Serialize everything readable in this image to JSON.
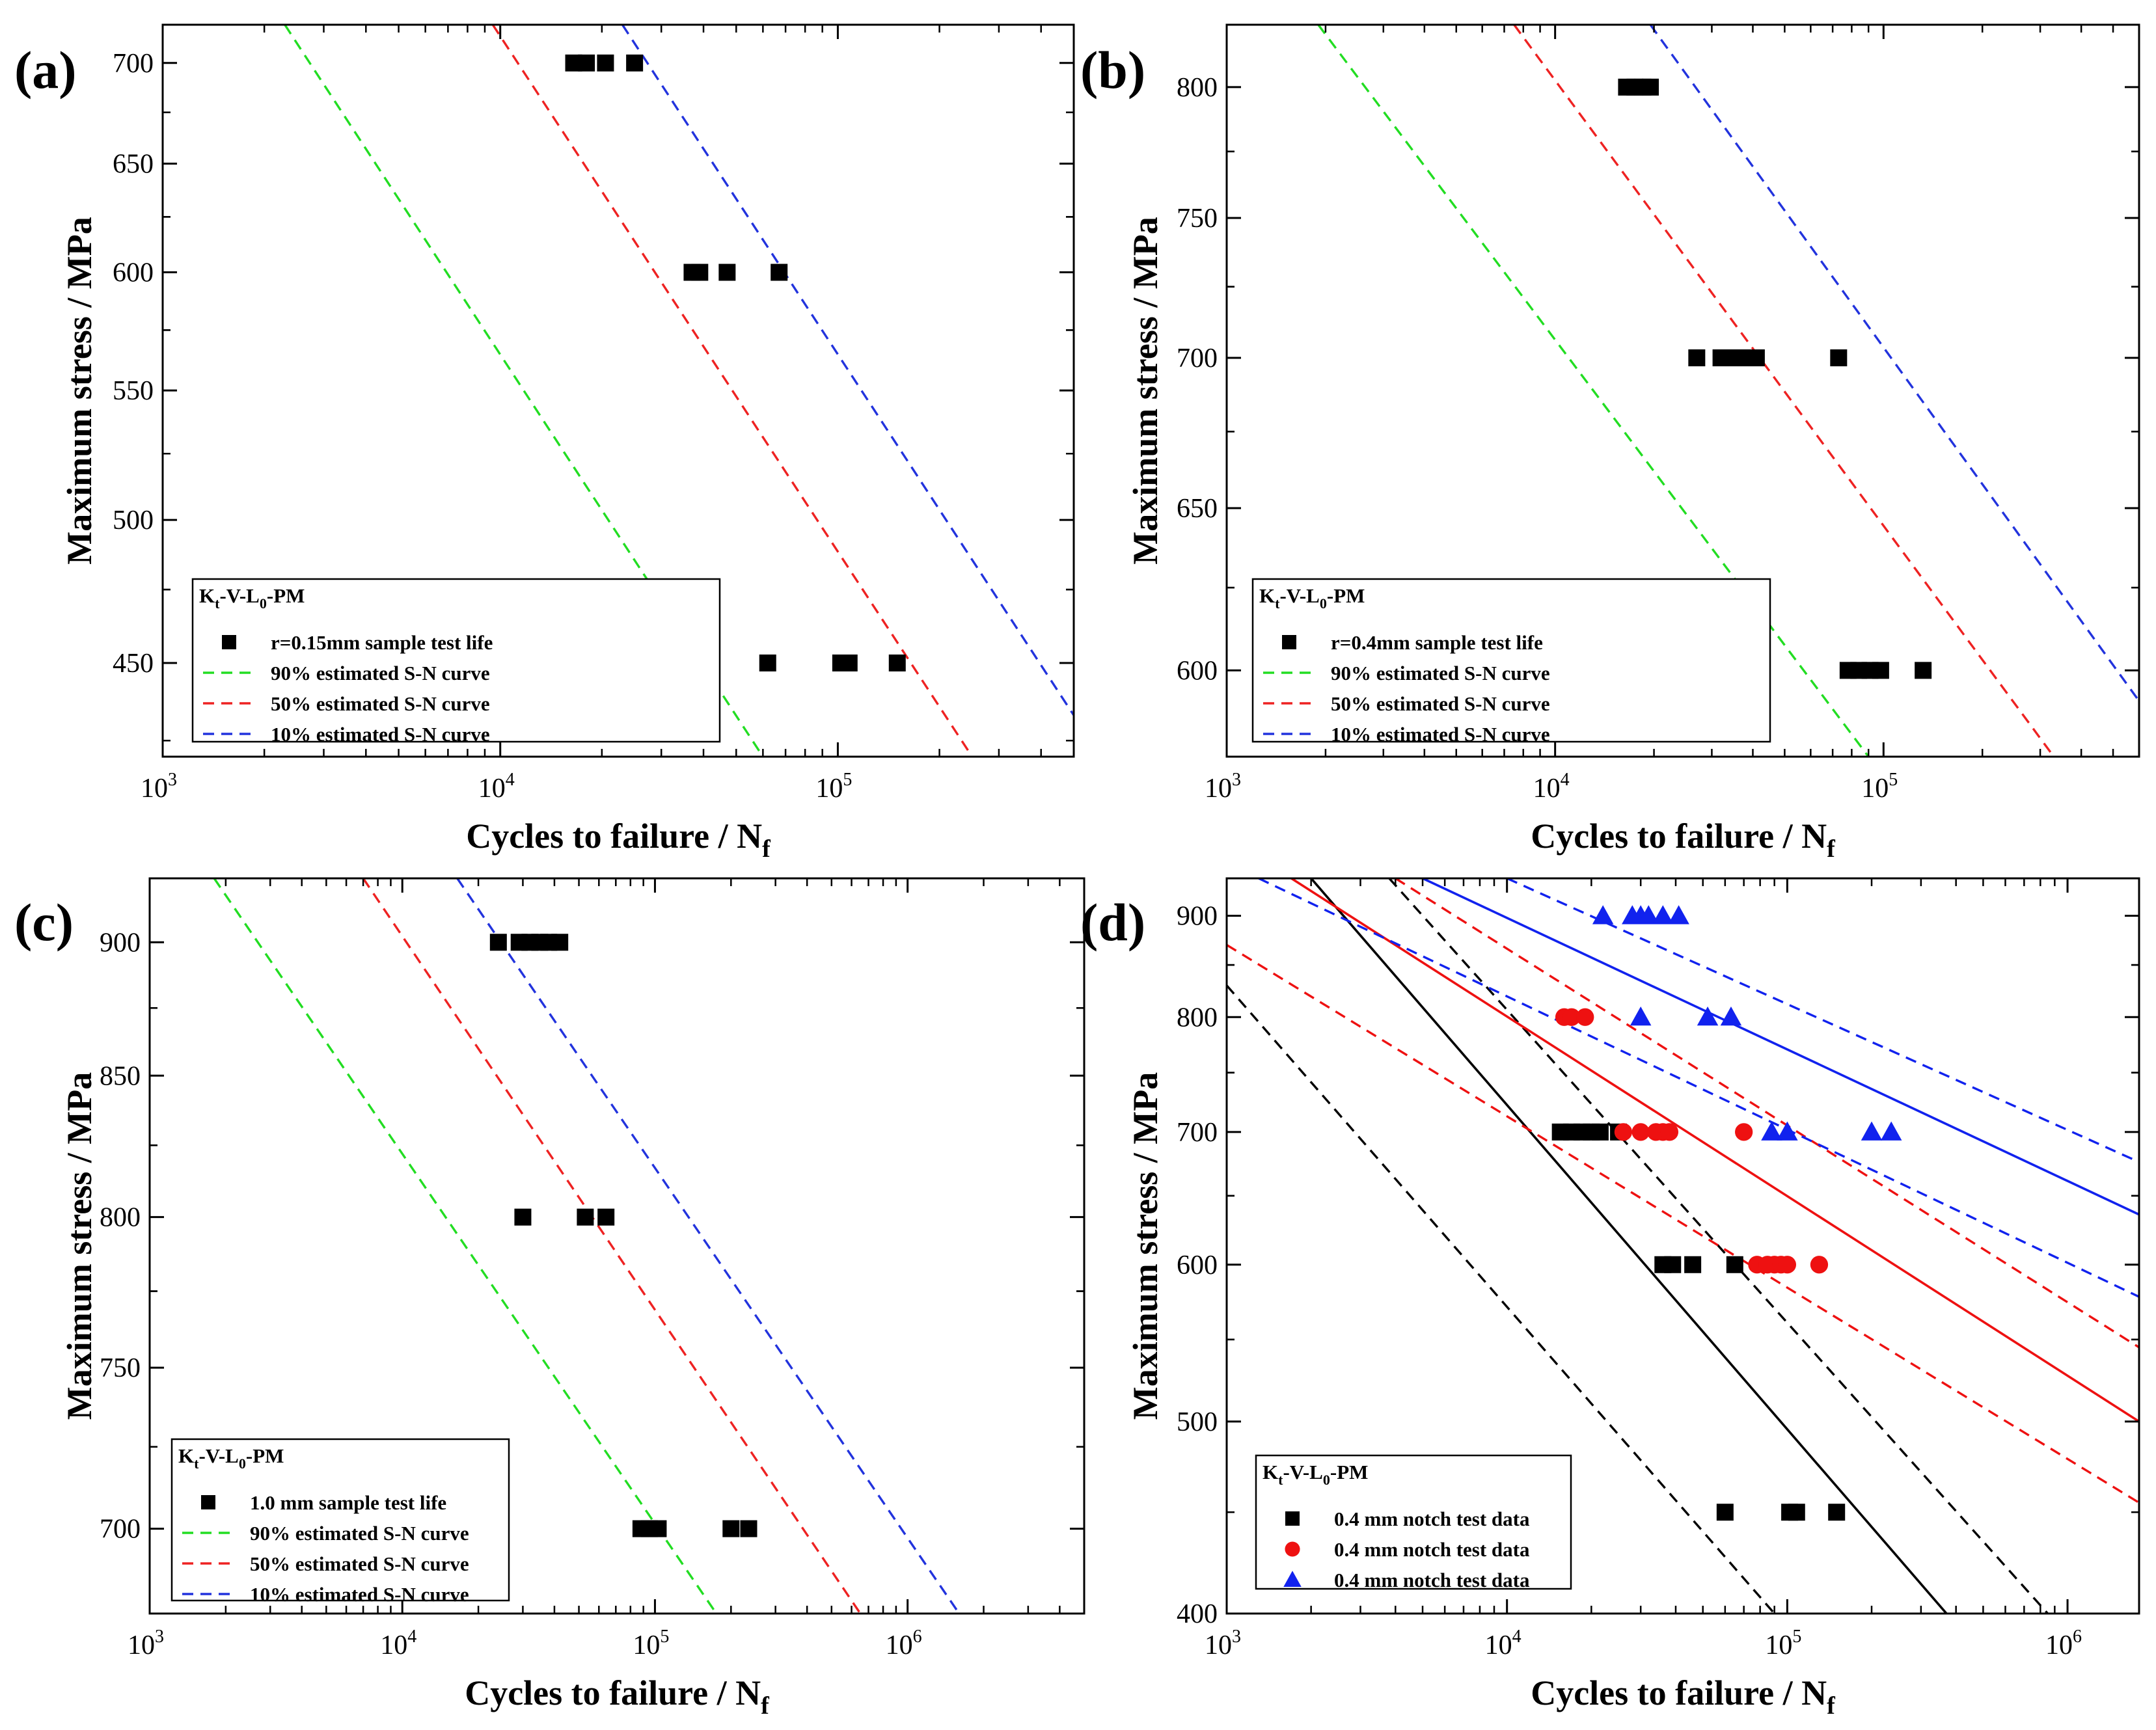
{
  "chart_data": [
    {
      "type": "scatter",
      "panel_label": "(a)",
      "xlabel": "Cycles to failure / N",
      "xlabel_sub": "f",
      "ylabel": "Maximum stress / MPa",
      "xscale": "log",
      "yscale": "log",
      "xlim": [
        1000,
        500000
      ],
      "ylim": [
        420,
        720
      ],
      "xticks": [
        {
          "v": 1000,
          "m": "10",
          "e": "3"
        },
        {
          "v": 10000,
          "m": "10",
          "e": "4"
        },
        {
          "v": 100000,
          "m": "10",
          "e": "5"
        }
      ],
      "yticks": [
        {
          "v": 450,
          "t": "450"
        },
        {
          "v": 500,
          "t": "500"
        },
        {
          "v": 550,
          "t": "550"
        },
        {
          "v": 600,
          "t": "600"
        },
        {
          "v": 650,
          "t": "650"
        },
        {
          "v": 700,
          "t": "700"
        }
      ],
      "legend": {
        "position": "bottom-left",
        "title": {
          "a": "K",
          "sub": "t",
          "b": "-V-L",
          "sub2": "0",
          "c": "-PM"
        },
        "entries": [
          {
            "label": "r=0.15mm sample test life",
            "style": "square",
            "color": "#000000"
          },
          {
            "label": "90% estimated S-N curve",
            "style": "dashed",
            "color": "#22dd22"
          },
          {
            "label": "50% estimated S-N curve",
            "style": "dashed",
            "color": "#ee2222"
          },
          {
            "label": "10% estimated S-N curve",
            "style": "dashed",
            "color": "#2233dd"
          }
        ]
      },
      "series": [
        {
          "name": "r=0.15mm sample test life",
          "kind": "points",
          "marker": "square",
          "color": "#000000",
          "points": [
            [
              16500,
              700
            ],
            [
              18000,
              700
            ],
            [
              20500,
              700
            ],
            [
              25000,
              700
            ],
            [
              37000,
              600
            ],
            [
              39000,
              600
            ],
            [
              47000,
              600
            ],
            [
              67000,
              600
            ],
            [
              62000,
              450
            ],
            [
              102000,
              450
            ],
            [
              108000,
              450
            ],
            [
              150000,
              450
            ]
          ]
        },
        {
          "name": "90% estimated S-N curve",
          "kind": "line",
          "dash": true,
          "color": "#22dd22",
          "points": [
            [
              2300,
              720
            ],
            [
              60000,
              420
            ]
          ]
        },
        {
          "name": "50% estimated S-N curve",
          "kind": "line",
          "dash": true,
          "color": "#ee2222",
          "points": [
            [
              9500,
              720
            ],
            [
              250000,
              420
            ]
          ]
        },
        {
          "name": "10% estimated S-N curve",
          "kind": "line",
          "dash": true,
          "color": "#2233dd",
          "points": [
            [
              23000,
              720
            ],
            [
              500000,
              433
            ]
          ]
        }
      ]
    },
    {
      "type": "scatter",
      "panel_label": "(b)",
      "xlabel": "Cycles to failure / N",
      "xlabel_sub": "f",
      "ylabel": "Maximum stress / MPa",
      "xscale": "log",
      "yscale": "log",
      "xlim": [
        1000,
        600000
      ],
      "ylim": [
        575,
        825
      ],
      "xticks": [
        {
          "v": 1000,
          "m": "10",
          "e": "3"
        },
        {
          "v": 10000,
          "m": "10",
          "e": "4"
        },
        {
          "v": 100000,
          "m": "10",
          "e": "5"
        }
      ],
      "yticks": [
        {
          "v": 600,
          "t": "600"
        },
        {
          "v": 650,
          "t": "650"
        },
        {
          "v": 700,
          "t": "700"
        },
        {
          "v": 750,
          "t": "750"
        },
        {
          "v": 800,
          "t": "800"
        }
      ],
      "legend": {
        "position": "bottom-left",
        "title": {
          "a": "K",
          "sub": "t",
          "b": "-V-L",
          "sub2": "0",
          "c": "-PM"
        },
        "entries": [
          {
            "label": "r=0.4mm sample test life",
            "style": "square",
            "color": "#000000"
          },
          {
            "label": "90% estimated S-N curve",
            "style": "dashed",
            "color": "#22dd22"
          },
          {
            "label": "50% estimated S-N curve",
            "style": "dashed",
            "color": "#ee2222"
          },
          {
            "label": "10% estimated S-N curve",
            "style": "dashed",
            "color": "#2233dd"
          }
        ]
      },
      "series": [
        {
          "name": "r=0.4mm sample test life",
          "kind": "points",
          "marker": "square",
          "color": "#000000",
          "points": [
            [
              16500,
              800
            ],
            [
              17500,
              800
            ],
            [
              18500,
              800
            ],
            [
              19500,
              800
            ],
            [
              27000,
              700
            ],
            [
              32000,
              700
            ],
            [
              35000,
              700
            ],
            [
              38000,
              700
            ],
            [
              41000,
              700
            ],
            [
              73000,
              700
            ],
            [
              78000,
              600
            ],
            [
              84000,
              600
            ],
            [
              91000,
              600
            ],
            [
              98000,
              600
            ],
            [
              132000,
              600
            ]
          ]
        },
        {
          "name": "90% estimated S-N curve",
          "kind": "line",
          "dash": true,
          "color": "#22dd22",
          "points": [
            [
              1900,
              825
            ],
            [
              90000,
              575
            ]
          ]
        },
        {
          "name": "50% estimated S-N curve",
          "kind": "line",
          "dash": true,
          "color": "#ee2222",
          "points": [
            [
              7500,
              825
            ],
            [
              330000,
              575
            ]
          ]
        },
        {
          "name": "10% estimated S-N curve",
          "kind": "line",
          "dash": true,
          "color": "#2233dd",
          "points": [
            [
              19500,
              825
            ],
            [
              600000,
              591
            ]
          ]
        }
      ]
    },
    {
      "type": "scatter",
      "panel_label": "(c)",
      "xlabel": "Cycles to failure / N",
      "xlabel_sub": "f",
      "ylabel": "Maximum stress / MPa",
      "xscale": "log",
      "yscale": "log",
      "xlim": [
        1000,
        5000000
      ],
      "ylim": [
        675,
        925
      ],
      "xticks": [
        {
          "v": 1000,
          "m": "10",
          "e": "3"
        },
        {
          "v": 10000,
          "m": "10",
          "e": "4"
        },
        {
          "v": 100000,
          "m": "10",
          "e": "5"
        },
        {
          "v": 1000000,
          "m": "10",
          "e": "6"
        }
      ],
      "yticks": [
        {
          "v": 700,
          "t": "700"
        },
        {
          "v": 750,
          "t": "750"
        },
        {
          "v": 800,
          "t": "800"
        },
        {
          "v": 850,
          "t": "850"
        },
        {
          "v": 900,
          "t": "900"
        }
      ],
      "legend": {
        "position": "bottom-left",
        "title": {
          "a": "K",
          "sub": "t",
          "b": "-V-L",
          "sub2": "0",
          "c": "-PM"
        },
        "entries": [
          {
            "label": "1.0 mm sample test life",
            "style": "square",
            "color": "#000000"
          },
          {
            "label": "90% estimated S-N curve",
            "style": "dashed",
            "color": "#22dd22"
          },
          {
            "label": "50% estimated S-N curve",
            "style": "dashed",
            "color": "#ee2222"
          },
          {
            "label": "10% estimated S-N curve",
            "style": "dashed",
            "color": "#2233dd"
          }
        ]
      },
      "series": [
        {
          "name": "1.0 mm sample test life",
          "kind": "points",
          "marker": "square",
          "color": "#000000",
          "points": [
            [
              24000,
              900
            ],
            [
              29000,
              900
            ],
            [
              32000,
              900
            ],
            [
              35000,
              900
            ],
            [
              38000,
              900
            ],
            [
              42000,
              900
            ],
            [
              30000,
              800
            ],
            [
              53000,
              800
            ],
            [
              64000,
              800
            ],
            [
              88000,
              700
            ],
            [
              95000,
              700
            ],
            [
              103000,
              700
            ],
            [
              200000,
              700
            ],
            [
              235000,
              700
            ]
          ]
        },
        {
          "name": "90% estimated S-N curve",
          "kind": "line",
          "dash": true,
          "color": "#22dd22",
          "points": [
            [
              1800,
              925
            ],
            [
              175000,
              675
            ]
          ]
        },
        {
          "name": "50% estimated S-N curve",
          "kind": "line",
          "dash": true,
          "color": "#ee2222",
          "points": [
            [
              7000,
              925
            ],
            [
              650000,
              675
            ]
          ]
        },
        {
          "name": "10% estimated S-N curve",
          "kind": "line",
          "dash": true,
          "color": "#2233dd",
          "points": [
            [
              16500,
              925
            ],
            [
              1600000,
              675
            ]
          ]
        }
      ]
    },
    {
      "type": "scatter",
      "panel_label": "(d)",
      "xlabel": "Cycles to failure / N",
      "xlabel_sub": "f",
      "ylabel": "Maximum stress / MPa",
      "xscale": "log",
      "yscale": "log",
      "xlim": [
        1000,
        1800000
      ],
      "ylim": [
        400,
        940
      ],
      "xticks": [
        {
          "v": 1000,
          "m": "10",
          "e": "3"
        },
        {
          "v": 10000,
          "m": "10",
          "e": "4"
        },
        {
          "v": 100000,
          "m": "10",
          "e": "5"
        },
        {
          "v": 1000000,
          "m": "10",
          "e": "6"
        }
      ],
      "yticks": [
        {
          "v": 400,
          "t": "400"
        },
        {
          "v": 500,
          "t": "500"
        },
        {
          "v": 600,
          "t": "600"
        },
        {
          "v": 700,
          "t": "700"
        },
        {
          "v": 800,
          "t": "800"
        },
        {
          "v": 900,
          "t": "900"
        }
      ],
      "legend": {
        "position": "bottom-left",
        "title": {
          "a": "K",
          "sub": "t",
          "b": "-V-L",
          "sub2": "0",
          "c": "-PM"
        },
        "entries": [
          {
            "label": "0.4  mm notch test data",
            "style": "square",
            "color": "#000000"
          },
          {
            "label": "0.4  mm notch test data",
            "style": "circle",
            "color": "#ee1111"
          },
          {
            "label": "0.4  mm notch test data",
            "style": "triangle",
            "color": "#1122ee"
          }
        ]
      },
      "series": [
        {
          "name": "black data",
          "kind": "points",
          "marker": "square",
          "color": "#000000",
          "points": [
            [
              15500,
              700
            ],
            [
              17000,
              700
            ],
            [
              18500,
              700
            ],
            [
              20000,
              700
            ],
            [
              21500,
              700
            ],
            [
              25000,
              700
            ],
            [
              36000,
              600
            ],
            [
              39000,
              600
            ],
            [
              46000,
              600
            ],
            [
              65000,
              600
            ],
            [
              60000,
              450
            ],
            [
              102000,
              450
            ],
            [
              108000,
              450
            ],
            [
              150000,
              450
            ]
          ]
        },
        {
          "name": "red data",
          "kind": "points",
          "marker": "circle",
          "color": "#ee1111",
          "points": [
            [
              16000,
              800
            ],
            [
              17000,
              800
            ],
            [
              19000,
              800
            ],
            [
              26000,
              700
            ],
            [
              30000,
              700
            ],
            [
              34000,
              700
            ],
            [
              36000,
              700
            ],
            [
              38000,
              700
            ],
            [
              70000,
              700
            ],
            [
              78000,
              600
            ],
            [
              85000,
              600
            ],
            [
              90000,
              600
            ],
            [
              95000,
              600
            ],
            [
              100000,
              600
            ],
            [
              130000,
              600
            ]
          ]
        },
        {
          "name": "blue data",
          "kind": "points",
          "marker": "triangle",
          "color": "#1122ee",
          "points": [
            [
              22000,
              900
            ],
            [
              28000,
              900
            ],
            [
              30000,
              900
            ],
            [
              32000,
              900
            ],
            [
              36000,
              900
            ],
            [
              41000,
              900
            ],
            [
              30000,
              800
            ],
            [
              52000,
              800
            ],
            [
              63000,
              800
            ],
            [
              88000,
              700
            ],
            [
              100000,
              700
            ],
            [
              200000,
              700
            ],
            [
              235000,
              700
            ]
          ]
        },
        {
          "name": "black median",
          "kind": "line",
          "dash": false,
          "color": "#000000",
          "points": [
            [
              2000,
              940
            ],
            [
              370000,
              400
            ]
          ]
        },
        {
          "name": "black upper",
          "kind": "line",
          "dash": true,
          "color": "#000000",
          "points": [
            [
              3800,
              940
            ],
            [
              850000,
              400
            ]
          ]
        },
        {
          "name": "black lower",
          "kind": "line",
          "dash": true,
          "color": "#000000",
          "points": [
            [
              1000,
              830
            ],
            [
              90000,
              400
            ]
          ]
        },
        {
          "name": "red median",
          "kind": "line",
          "dash": false,
          "color": "#ee1111",
          "points": [
            [
              1700,
              940
            ],
            [
              1800000,
              500
            ]
          ]
        },
        {
          "name": "red upper",
          "kind": "line",
          "dash": true,
          "color": "#ee1111",
          "points": [
            [
              4000,
              940
            ],
            [
              1800000,
              545
            ]
          ]
        },
        {
          "name": "red lower",
          "kind": "line",
          "dash": true,
          "color": "#ee1111",
          "points": [
            [
              1000,
              870
            ],
            [
              1800000,
              455
            ]
          ]
        },
        {
          "name": "blue median",
          "kind": "line",
          "dash": false,
          "color": "#1122ee",
          "points": [
            [
              5000,
              940
            ],
            [
              1800000,
              636
            ]
          ]
        },
        {
          "name": "blue upper",
          "kind": "line",
          "dash": true,
          "color": "#1122ee",
          "points": [
            [
              10000,
              940
            ],
            [
              1800000,
              676
            ]
          ]
        },
        {
          "name": "blue lower",
          "kind": "line",
          "dash": true,
          "color": "#1122ee",
          "points": [
            [
              1300,
              940
            ],
            [
              1800000,
              578
            ]
          ]
        }
      ]
    }
  ]
}
